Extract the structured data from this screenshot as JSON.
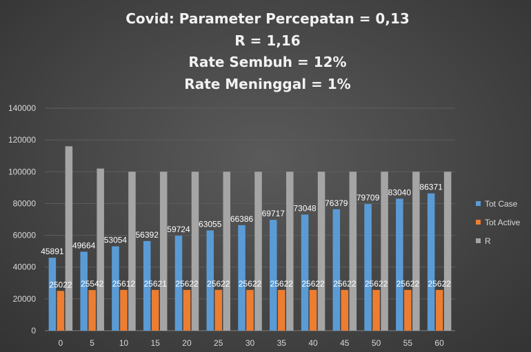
{
  "chart_data": {
    "type": "bar",
    "title": [
      "Covid: Parameter Percepatan = 0,13",
      "R = 1,16",
      "Rate Sembuh = 12%",
      "Rate Meninggal = 1%"
    ],
    "categories": [
      "0",
      "5",
      "10",
      "15",
      "20",
      "25",
      "30",
      "35",
      "40",
      "45",
      "50",
      "55",
      "60"
    ],
    "series": [
      {
        "name": "Tot Case",
        "color": "#5b9bd5",
        "values": [
          45891,
          49664,
          53054,
          56392,
          59724,
          63055,
          66386,
          69717,
          73048,
          76379,
          79709,
          83040,
          86371
        ],
        "labels": [
          "45891",
          "49664",
          "53054",
          "56392",
          "59724",
          "63055",
          "66386",
          "69717",
          "73048",
          "76379",
          "79709",
          "83040",
          "86371"
        ]
      },
      {
        "name": "Tot Active",
        "color": "#ed7d31",
        "values": [
          25022,
          25542,
          25612,
          25621,
          25622,
          25622,
          25622,
          25622,
          25622,
          25622,
          25622,
          25622,
          25622
        ],
        "labels": [
          "25022",
          "25542",
          "25612",
          "25621",
          "25622",
          "25622",
          "25622",
          "25622",
          "25622",
          "25622",
          "25622",
          "25622",
          "25622"
        ]
      },
      {
        "name": "R",
        "color": "#a5a5a5",
        "values": [
          116000,
          102000,
          100000,
          100000,
          100000,
          100000,
          100000,
          100000,
          100000,
          100000,
          100000,
          100000,
          100000
        ]
      }
    ],
    "ylim": [
      0,
      140000
    ],
    "yticks": [
      "0",
      "20000",
      "40000",
      "60000",
      "80000",
      "100000",
      "120000",
      "140000"
    ],
    "grid": true,
    "legend": "right"
  }
}
